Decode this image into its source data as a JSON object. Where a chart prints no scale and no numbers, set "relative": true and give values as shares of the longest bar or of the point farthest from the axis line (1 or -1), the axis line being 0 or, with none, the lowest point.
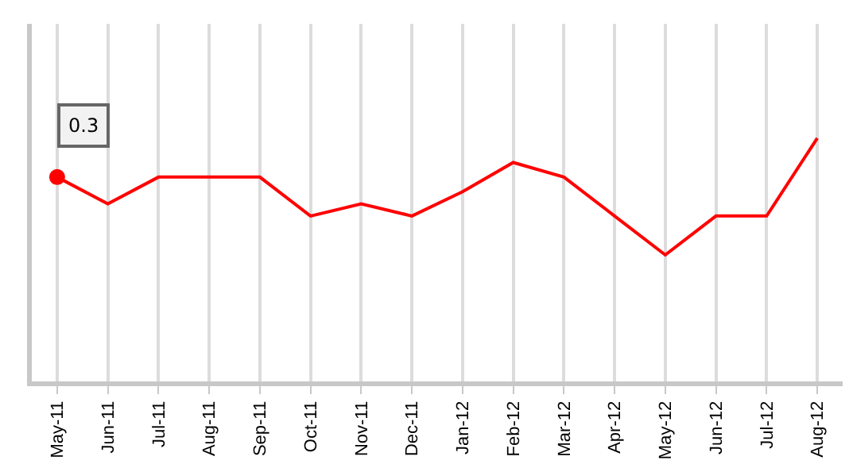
{
  "chart_data": {
    "type": "line",
    "relative": true,
    "categories": [
      "May-11",
      "Jun-11",
      "Jul-11",
      "Aug-11",
      "Sep-11",
      "Oct-11",
      "Nov-11",
      "Dec-11",
      "Jan-12",
      "Feb-12",
      "Mar-12",
      "Apr-12",
      "May-12",
      "Jun-12",
      "Jul-12",
      "Aug-12"
    ],
    "series": [
      {
        "color": "#ff0000",
        "values": [
          0.84,
          0.73,
          0.84,
          0.84,
          0.84,
          0.68,
          0.73,
          0.68,
          0.78,
          0.9,
          0.84,
          0.68,
          0.52,
          0.68,
          0.68,
          1
        ]
      }
    ],
    "annotations": [
      {
        "text": "0.3",
        "x": "May-11",
        "y": 0.84
      }
    ],
    "grid": "x",
    "marker": "none",
    "line_style": "solid"
  }
}
